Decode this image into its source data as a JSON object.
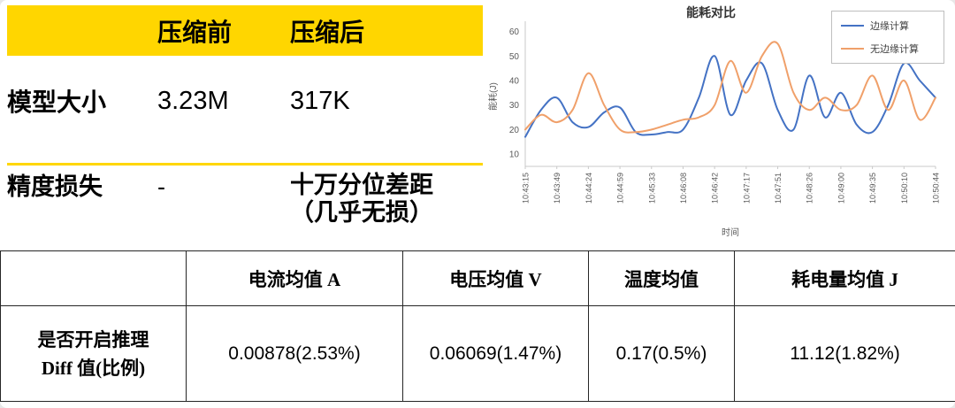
{
  "colors": {
    "header_yellow": "#FFD600",
    "series_blue": "#4472C4",
    "series_orange": "#F0A06A"
  },
  "comparison_table": {
    "header": {
      "before": "压缩前",
      "after": "压缩后"
    },
    "row_model_size": {
      "label": "模型大小",
      "before": "3.23M",
      "after": "317K"
    },
    "row_precision": {
      "label": "精度损失",
      "before": "-",
      "after_line1": "十万分位差距",
      "after_line2": "（几乎无损）"
    }
  },
  "chart_data": {
    "type": "line",
    "title": "能耗对比",
    "ylabel": "能耗(J)",
    "xlabel": "时间",
    "ylim": [
      5,
      62
    ],
    "y_ticks": [
      10,
      20,
      30,
      40,
      50,
      60
    ],
    "grid": false,
    "legend_position": "top-right",
    "x_labels": [
      "10:43:15",
      "10:43:49",
      "10:44:24",
      "10:44:59",
      "10:45:33",
      "10:46:08",
      "10:46:42",
      "10:47:17",
      "10:47:51",
      "10:48:26",
      "10:49:00",
      "10:49:35",
      "10:50:10",
      "10:50:44"
    ],
    "series": [
      {
        "name": "边缘计算",
        "color": "#4472C4",
        "values": [
          17,
          28,
          33,
          23,
          21,
          27,
          29,
          19,
          18,
          19,
          20,
          33,
          50,
          26,
          40,
          47,
          28,
          20,
          42,
          25,
          35,
          22,
          19,
          30,
          47,
          40,
          33
        ]
      },
      {
        "name": "无边缘计算",
        "color": "#F0A06A",
        "values": [
          20,
          26,
          23,
          28,
          43,
          30,
          20,
          19,
          20,
          22,
          24,
          25,
          30,
          48,
          35,
          50,
          55,
          35,
          28,
          33,
          28,
          30,
          42,
          28,
          40,
          24,
          33
        ]
      }
    ]
  },
  "metrics_table": {
    "headers": [
      "",
      "电流均值 A",
      "电压均值 V",
      "温度均值",
      "耗电量均值  J"
    ],
    "rows": [
      {
        "label_lines": [
          "是否开启推理",
          "Diff 值(比例)"
        ],
        "values": [
          "0.00878(2.53%)",
          "0.06069(1.47%)",
          "0.17(0.5%)",
          "11.12(1.82%)"
        ]
      }
    ]
  }
}
